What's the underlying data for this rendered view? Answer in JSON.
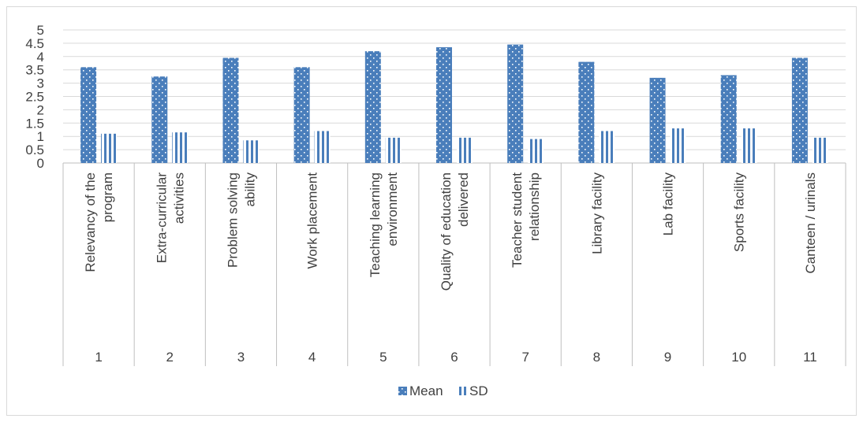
{
  "chart_data": {
    "type": "bar",
    "title": "",
    "xlabel": "",
    "ylabel": "",
    "ylim": [
      0,
      5
    ],
    "yticks": [
      "0",
      "0.5",
      "1",
      "1.5",
      "2",
      "2.5",
      "3",
      "3.5",
      "4",
      "4.5",
      "5"
    ],
    "grid": true,
    "legend_position": "bottom",
    "categories": [
      {
        "number": "1",
        "label": [
          "Relevancy of the",
          "program"
        ]
      },
      {
        "number": "2",
        "label": [
          "Extra-curricular",
          "activities"
        ]
      },
      {
        "number": "3",
        "label": [
          "Problem solving",
          "ability"
        ]
      },
      {
        "number": "4",
        "label": [
          "Work placement"
        ]
      },
      {
        "number": "5",
        "label": [
          "Teaching learning",
          "environment"
        ]
      },
      {
        "number": "6",
        "label": [
          "Quality of education",
          "delivered"
        ]
      },
      {
        "number": "7",
        "label": [
          "Teacher student",
          "relationship"
        ]
      },
      {
        "number": "8",
        "label": [
          "Library facility"
        ]
      },
      {
        "number": "9",
        "label": [
          "Lab facility"
        ]
      },
      {
        "number": "10",
        "label": [
          "Sports facility"
        ]
      },
      {
        "number": "11",
        "label": [
          "Canteen / urinals"
        ]
      }
    ],
    "series": [
      {
        "name": "Mean",
        "color": "#4a7ebb",
        "pattern": "dots",
        "values": [
          3.6,
          3.25,
          3.95,
          3.6,
          4.2,
          4.35,
          4.45,
          3.8,
          3.2,
          3.3,
          3.95
        ]
      },
      {
        "name": "SD",
        "color": "#4a7ebb",
        "pattern": "vertical-stripes",
        "values": [
          1.1,
          1.15,
          0.85,
          1.2,
          0.95,
          0.95,
          0.9,
          1.2,
          1.3,
          1.3,
          0.95
        ]
      }
    ]
  }
}
